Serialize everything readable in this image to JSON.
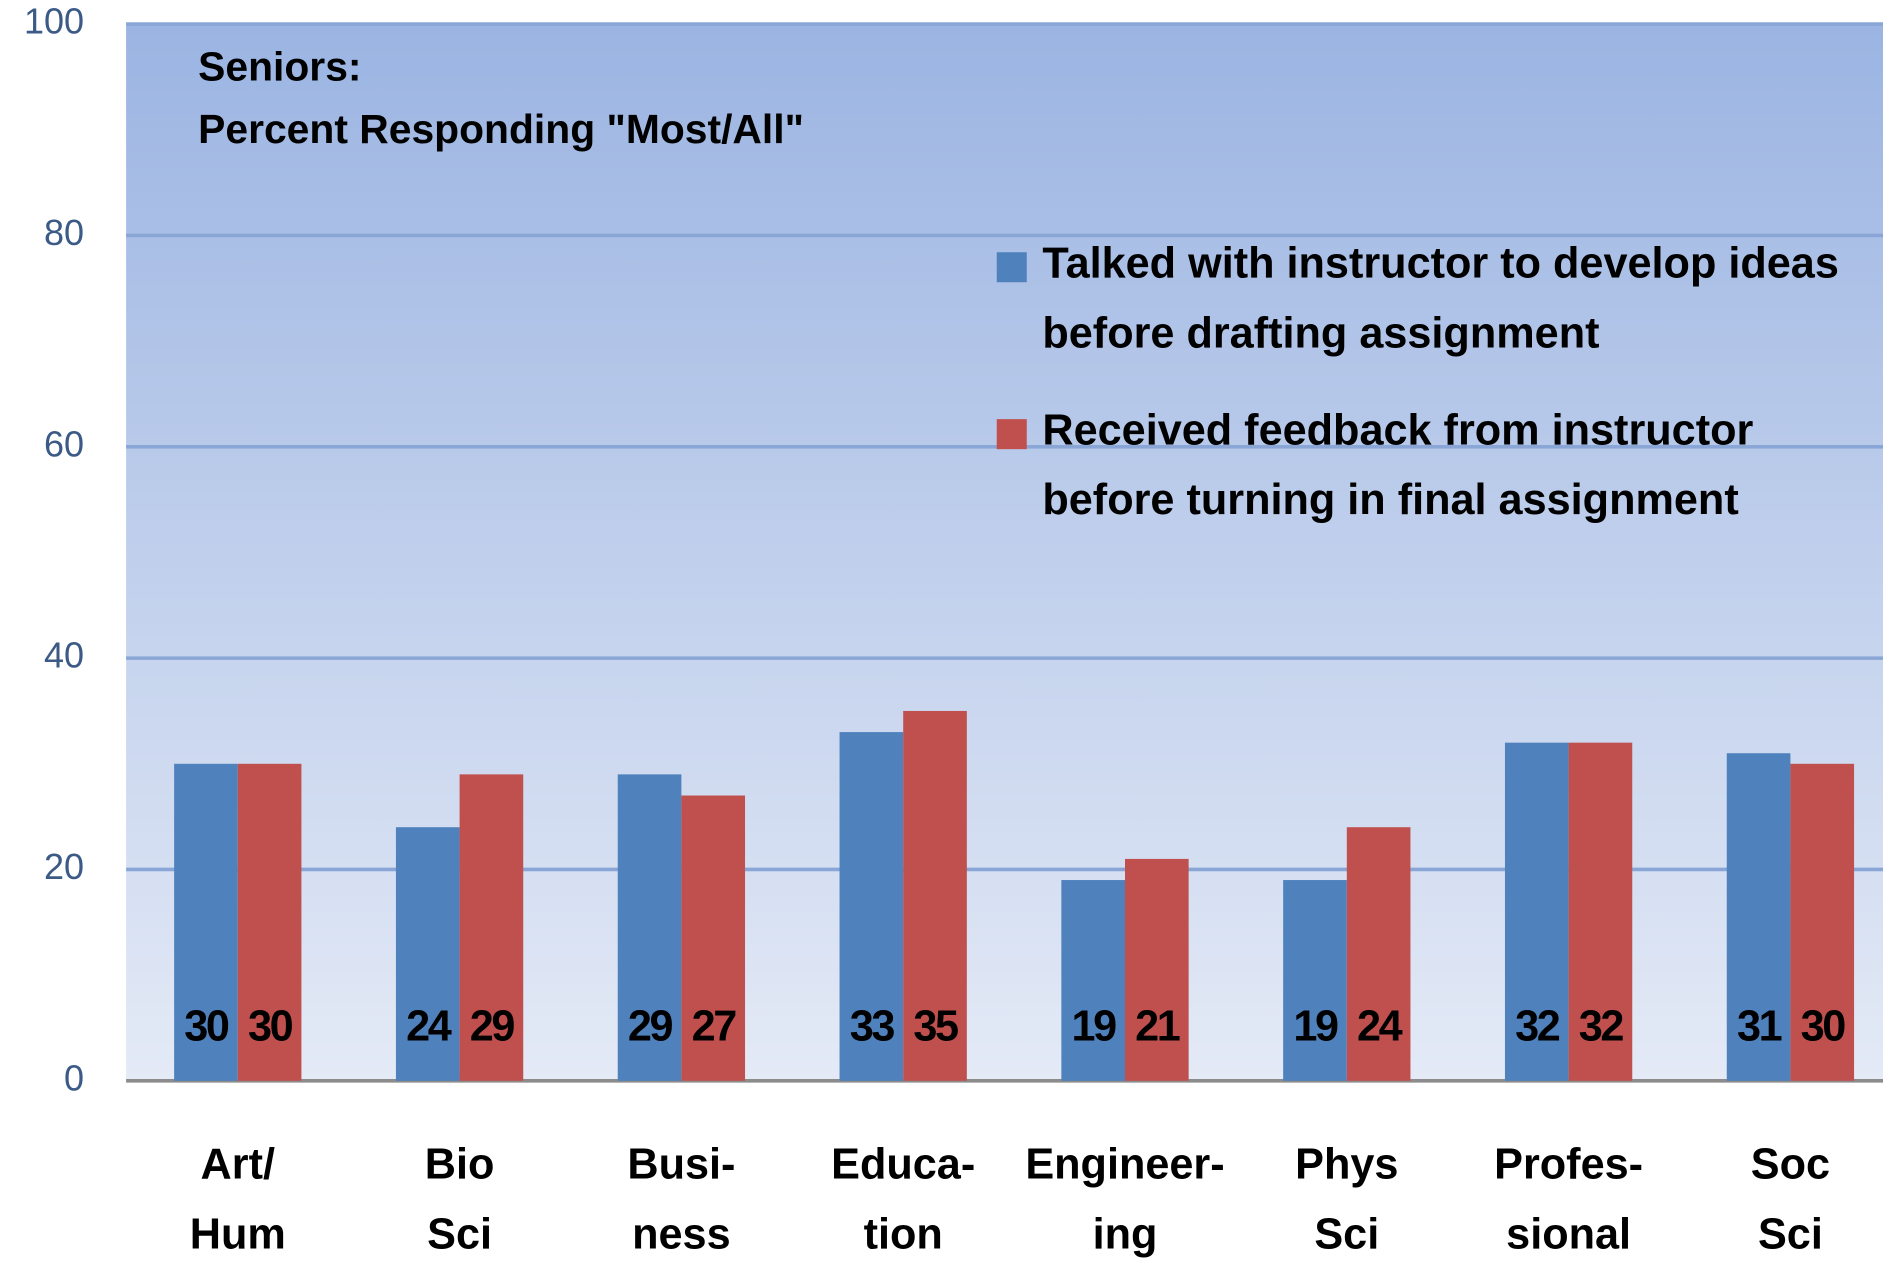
{
  "chart_data": {
    "type": "bar",
    "title": "Seniors:",
    "subtitle": "Percent Responding \"Most/All\"",
    "categories": [
      [
        "Art/",
        "Hum"
      ],
      [
        "Bio",
        "Sci"
      ],
      [
        "Busi-",
        "ness"
      ],
      [
        "Educa-",
        "tion"
      ],
      [
        "Engineer-",
        "ing"
      ],
      [
        "Phys",
        "Sci"
      ],
      [
        "Profes-",
        "sional"
      ],
      [
        "Soc",
        "Sci"
      ]
    ],
    "series": [
      {
        "name": "Talked with instructor to develop ideas before drafting assignment",
        "color": "#4f81bd",
        "values": [
          30,
          24,
          29,
          33,
          19,
          19,
          32,
          31
        ]
      },
      {
        "name": "Received feedback from instructor before turning in final assignment",
        "color": "#c0504d",
        "values": [
          30,
          29,
          27,
          35,
          21,
          24,
          32,
          30
        ]
      }
    ],
    "ylim": [
      0,
      100
    ],
    "yticks": [
      0,
      20,
      40,
      60,
      80,
      100
    ],
    "grid": true,
    "legend": "upper right"
  }
}
